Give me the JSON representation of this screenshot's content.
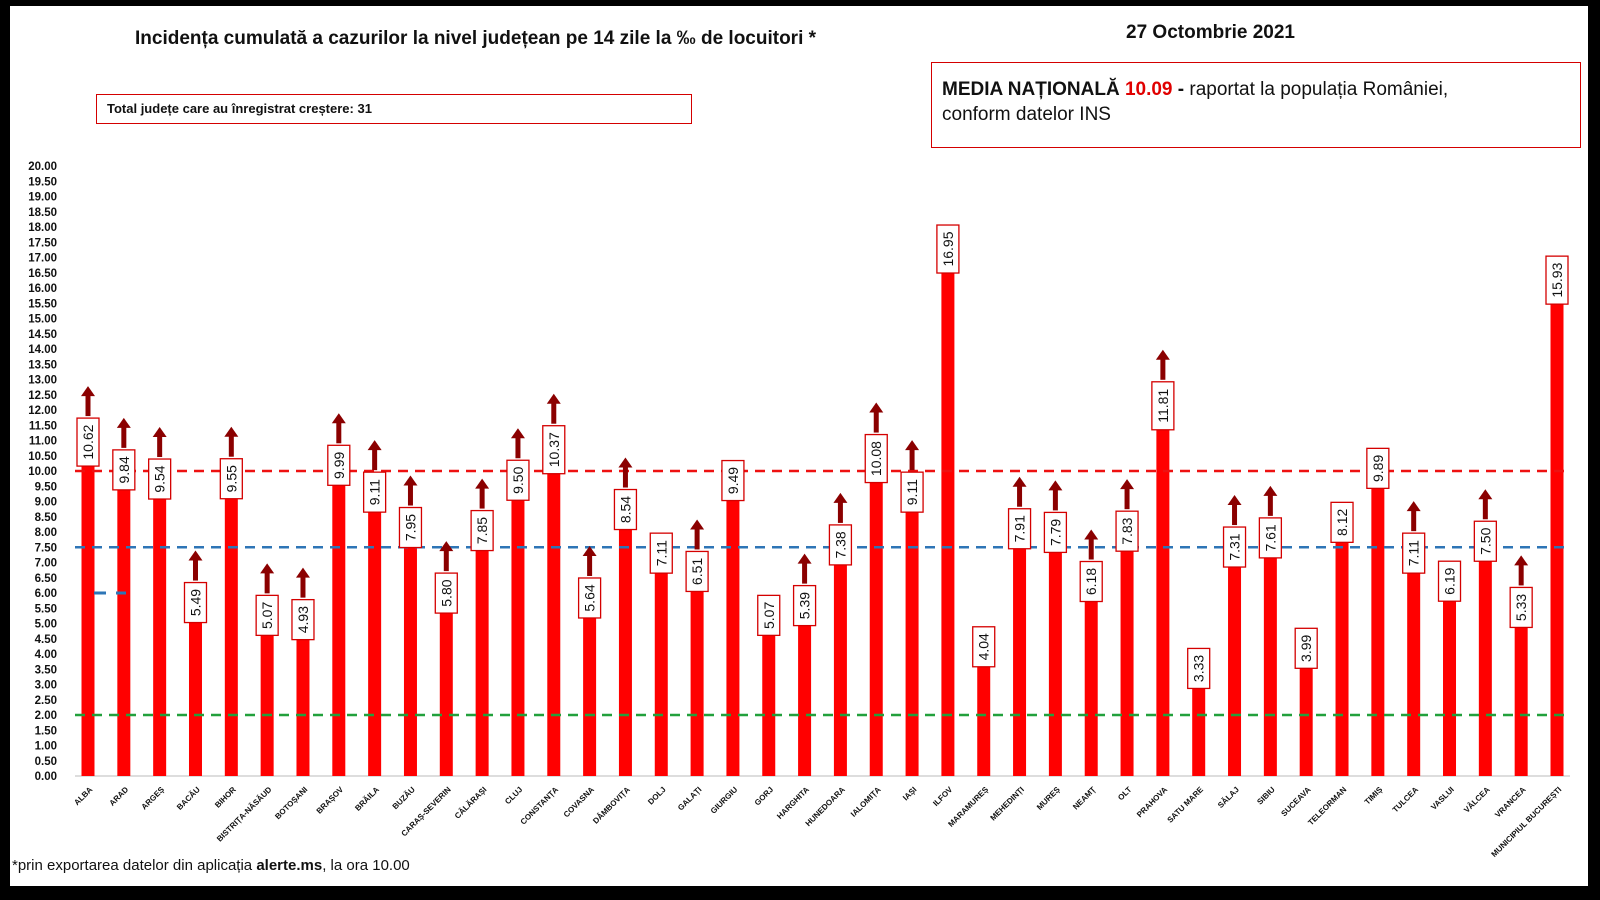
{
  "title": "Incidența cumulată a cazurilor la nivel județean pe 14 zile la ‰ de locuitori *",
  "date": "27 Octombrie 2021",
  "total_box": "Total județe care au înregistrat creștere:  31",
  "media_box": {
    "label": "MEDIA NAȚIONALĂ",
    "value": "10.09",
    "separator": " -",
    "text1": "  raportat la populația României,",
    "text2": "conform datelor INS"
  },
  "footnote": {
    "prefix": "*prin exportarea datelor din aplicația ",
    "app": "alerte.ms",
    "suffix": ", la ora 10.00"
  },
  "colors": {
    "bar": "#ff0000",
    "arrow": "#8b0000",
    "red_line": "#ee1111",
    "blue_line": "#2e75b6",
    "green_line": "#22a03c",
    "label_border": "#d40000"
  },
  "chart_data": {
    "type": "bar",
    "ylim": [
      0,
      20
    ],
    "ytick_step": 0.5,
    "categories": [
      "ALBA",
      "ARAD",
      "ARGEȘ",
      "BACĂU",
      "BIHOR",
      "BISTRIȚA-NĂSĂUD",
      "BOTOȘANI",
      "BRAȘOV",
      "BRĂILA",
      "BUZĂU",
      "CARAȘ-SEVERIN",
      "CĂLĂRAȘI",
      "CLUJ",
      "CONSTANȚA",
      "COVASNA",
      "DÂMBOVIȚA",
      "DOLJ",
      "GALAȚI",
      "GIURGIU",
      "GORJ",
      "HARGHITA",
      "HUNEDOARA",
      "IALOMIȚA",
      "IAȘI",
      "ILFOV",
      "MARAMUREȘ",
      "MEHEDINȚI",
      "MUREȘ",
      "NEAMȚ",
      "OLT",
      "PRAHOVA",
      "SATU MARE",
      "SĂLAJ",
      "SIBIU",
      "SUCEAVA",
      "TELEORMAN",
      "TIMIȘ",
      "TULCEA",
      "VASLUI",
      "VÂLCEA",
      "VRANCEA",
      "MUNICIPIUL BUCUREȘTI"
    ],
    "values": [
      10.62,
      9.84,
      9.54,
      5.49,
      9.55,
      5.07,
      4.93,
      9.99,
      9.11,
      7.95,
      5.8,
      7.85,
      9.5,
      10.37,
      5.64,
      8.54,
      7.11,
      6.51,
      9.49,
      5.07,
      5.39,
      7.38,
      10.08,
      9.11,
      16.95,
      4.04,
      7.91,
      7.79,
      6.18,
      7.83,
      11.81,
      3.33,
      7.31,
      7.61,
      3.99,
      8.12,
      9.89,
      7.11,
      6.19,
      7.5,
      5.33,
      15.93
    ],
    "labels": [
      "10.62",
      "9.84",
      "9.54",
      "5.49",
      "9.55",
      "5.07",
      "4.93",
      "9.99",
      "9.11",
      "7.95",
      "5.80",
      "7.85",
      "9.50",
      "10.37",
      "5.64",
      "8.54",
      "7.11",
      "6.51",
      "9.49",
      "5.07",
      "5.39",
      "7.38",
      "10.08",
      "9.11",
      "16.95",
      "4.04",
      "7.91",
      "7.79",
      "6.18",
      "7.83",
      "11.81",
      "3.33",
      "7.31",
      "7.61",
      "3.99",
      "8.12",
      "9.89",
      "7.11",
      "6.19",
      "7.50",
      "5.33",
      "15.93"
    ],
    "increase": [
      true,
      true,
      true,
      true,
      true,
      true,
      true,
      true,
      true,
      true,
      true,
      true,
      true,
      true,
      true,
      true,
      false,
      true,
      false,
      false,
      true,
      true,
      true,
      true,
      false,
      false,
      true,
      true,
      true,
      true,
      true,
      false,
      true,
      true,
      false,
      false,
      false,
      true,
      false,
      true,
      true,
      false
    ],
    "reference_lines": [
      {
        "name": "red",
        "value": 10.0,
        "style": "dashed"
      },
      {
        "name": "blue",
        "value": 7.5,
        "style": "dashed"
      },
      {
        "name": "green",
        "value": 2.0,
        "style": "dashed"
      }
    ],
    "short_marker": {
      "value": 6.0,
      "color": "blue"
    }
  }
}
